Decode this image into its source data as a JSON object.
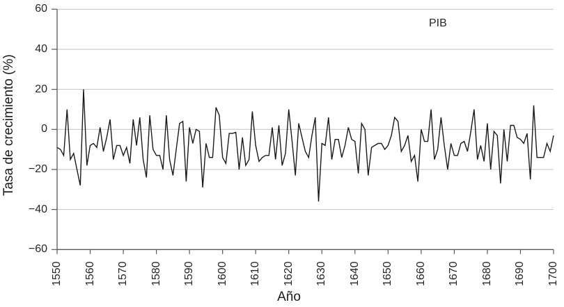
{
  "chart_data": {
    "type": "line",
    "title": "",
    "series_label": "PIB",
    "xlabel": "Año",
    "ylabel": "Tasa de crecimiento (%)",
    "xlim": [
      1550,
      1700
    ],
    "ylim": [
      -60,
      60
    ],
    "xticks": [
      1550,
      1560,
      1570,
      1580,
      1590,
      1600,
      1610,
      1620,
      1630,
      1640,
      1650,
      1660,
      1670,
      1680,
      1690,
      1700
    ],
    "yticks": [
      60,
      40,
      20,
      0,
      -20,
      -40,
      -60
    ],
    "grid": true,
    "legend_position": "top-right-inside",
    "x_start": 1550,
    "x_step": 1,
    "values": [
      -9,
      -10,
      -13,
      10,
      -15,
      -12,
      -20,
      -28,
      20,
      -18,
      -8,
      -7,
      -9,
      1,
      -11,
      -4,
      5,
      -15,
      -8,
      -8,
      -13,
      -9,
      -17,
      5,
      -8,
      6,
      -15,
      -24,
      7,
      -10,
      -13,
      -13,
      -20,
      7,
      -15,
      -23,
      -10,
      3,
      4,
      -26,
      1,
      -7,
      0,
      -1,
      -29,
      -7,
      -14,
      -14,
      11,
      7,
      -14,
      -17,
      -2,
      -2,
      -1.5,
      -20,
      -4,
      -18,
      -15,
      9,
      -8,
      -16,
      -14,
      -13,
      -13,
      1,
      -15,
      2,
      -18,
      -12,
      10,
      -6,
      -23,
      3,
      -4,
      -11,
      -14,
      -3,
      6,
      -36,
      -7,
      -8,
      6,
      -15,
      -5,
      -5,
      -14,
      -8,
      1,
      -5,
      -6,
      -22,
      3,
      0,
      -23,
      -9,
      -8,
      -7,
      -7,
      -10,
      -8,
      -3,
      6,
      4,
      -11,
      -8,
      -3,
      -16,
      -13,
      -26,
      0,
      -6,
      -6,
      10,
      -15,
      -10,
      6,
      -8,
      -20,
      -7,
      -13,
      -13,
      -7,
      -6,
      -11,
      -1,
      10,
      -15,
      -8,
      -16,
      3,
      -20,
      -1,
      -3,
      -27,
      0,
      -16,
      2,
      2,
      -4,
      -5,
      -7,
      -2,
      -25,
      12,
      -14,
      -14,
      -14,
      -7,
      -11,
      -3
    ],
    "line_color": "#1a1a1a",
    "grid_color": "#c2c2c2",
    "axis_color": "#595959",
    "text_color": "#262626"
  }
}
